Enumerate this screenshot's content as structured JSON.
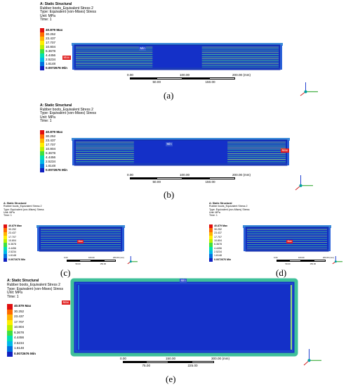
{
  "header": {
    "analysis": "A: Static Structural",
    "result": "Rubber boots_Equivalent Stress 2",
    "type": "Type: Equivalent (von-Mises) Stress",
    "unit": "Unit: MPa",
    "time": "Time: 1"
  },
  "legend": {
    "levels": [
      {
        "label": "40.879 Max",
        "color": "#e01010",
        "bold": true
      },
      {
        "label": "30.252",
        "color": "#ff6a00"
      },
      {
        "label": "23.437",
        "color": "#ffb400"
      },
      {
        "label": "17.707",
        "color": "#ffee00"
      },
      {
        "label": "10.804",
        "color": "#b9f000"
      },
      {
        "label": "6.3678",
        "color": "#40e040"
      },
      {
        "label": "4.4456",
        "color": "#00e0b0"
      },
      {
        "label": "2.5234",
        "color": "#00b8e8"
      },
      {
        "label": "1.6148",
        "color": "#0070e0"
      },
      {
        "label": "0.0072676 Min",
        "color": "#1020c0",
        "bold": true
      }
    ]
  },
  "labels": {
    "max": "Max",
    "min": "Min"
  },
  "scale_standard": {
    "top": [
      "0.00",
      "100.00",
      "200.00 (mm)"
    ],
    "bottom": [
      "50.00",
      "150.00"
    ]
  },
  "scale_e": {
    "top": [
      "0.00",
      "150.00",
      "300.00 (mm)"
    ],
    "bottom": [
      "75.00",
      "225.00"
    ]
  },
  "captions": {
    "a": "(a)",
    "b": "(b)",
    "c": "(c)",
    "d": "(d)",
    "e": "(e)"
  },
  "colors": {
    "body": "#1430c8",
    "body_edge": "#0a1e9a",
    "stripe": "#4bd08a",
    "stripe_light": "#9be070",
    "frame": "#3fc09a",
    "axis_x": "#d02020",
    "axis_y": "#20a020",
    "axis_z": "#2040d0",
    "axis_origin": "#00a0a0"
  }
}
